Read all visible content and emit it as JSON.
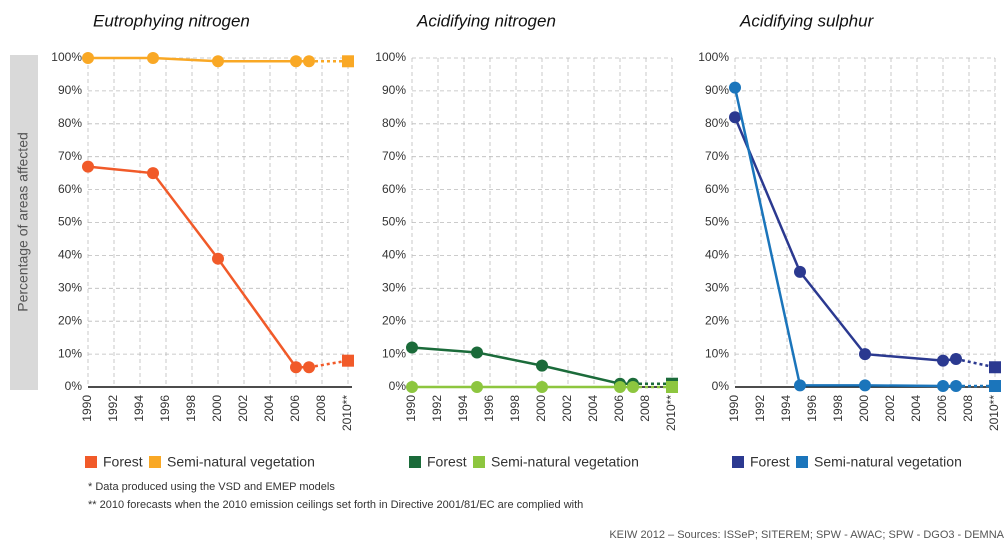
{
  "chart_data": [
    {
      "type": "line",
      "title": "Eutrophying nitrogen",
      "ylabel": "Percentage of areas affected",
      "x": [
        1990,
        1995,
        2000,
        2006,
        2007,
        2010
      ],
      "series": [
        {
          "name": "Forest",
          "color": "#f15a29",
          "values": [
            67,
            65,
            39,
            6,
            6,
            8
          ]
        },
        {
          "name": "Semi-natural vegetation",
          "color": "#f9a825",
          "values": [
            100,
            100,
            99,
            99,
            99,
            99
          ]
        }
      ],
      "xlim": [
        1990,
        2010
      ],
      "xticks": [
        1990,
        1992,
        1994,
        1996,
        1998,
        2000,
        2002,
        2004,
        2006,
        2008,
        {
          "value": 2010,
          "label": "2010**"
        }
      ],
      "ylim": [
        0,
        100
      ],
      "yticks": [
        {
          "value": 0,
          "label": "0%"
        },
        {
          "value": 10,
          "label": "10%"
        },
        {
          "value": 20,
          "label": "20%"
        },
        {
          "value": 30,
          "label": "30%"
        },
        {
          "value": 40,
          "label": "40%"
        },
        {
          "value": 50,
          "label": "50%"
        },
        {
          "value": 60,
          "label": "60%"
        },
        {
          "value": 70,
          "label": "70%"
        },
        {
          "value": 80,
          "label": "80%"
        },
        {
          "value": 90,
          "label": "90%"
        },
        {
          "value": 100,
          "label": "100%"
        }
      ],
      "grid": true,
      "last_segment_dotted": true
    },
    {
      "type": "line",
      "title": "Acidifying nitrogen",
      "x": [
        1990,
        1995,
        2000,
        2006,
        2007,
        2010
      ],
      "series": [
        {
          "name": "Forest",
          "color": "#1b6b3a",
          "values": [
            12,
            10.5,
            6.5,
            1,
            1,
            1
          ]
        },
        {
          "name": "Semi-natural vegetation",
          "color": "#8dc63f",
          "values": [
            0,
            0,
            0,
            0,
            0,
            0
          ]
        }
      ],
      "xlim": [
        1990,
        2010
      ],
      "xticks": [
        1990,
        1992,
        1994,
        1996,
        1998,
        2000,
        2002,
        2004,
        2006,
        2008,
        {
          "value": 2010,
          "label": "2010**"
        }
      ],
      "ylim": [
        0,
        100
      ],
      "yticks": [
        {
          "value": 0,
          "label": "0%"
        },
        {
          "value": 10,
          "label": "10%"
        },
        {
          "value": 20,
          "label": "20%"
        },
        {
          "value": 30,
          "label": "30%"
        },
        {
          "value": 40,
          "label": "40%"
        },
        {
          "value": 50,
          "label": "50%"
        },
        {
          "value": 60,
          "label": "60%"
        },
        {
          "value": 70,
          "label": "70%"
        },
        {
          "value": 80,
          "label": "80%"
        },
        {
          "value": 90,
          "label": "90%"
        },
        {
          "value": 100,
          "label": "100%"
        }
      ],
      "grid": true,
      "last_segment_dotted": true
    },
    {
      "type": "line",
      "title": "Acidifying sulphur",
      "x": [
        1990,
        1995,
        2000,
        2006,
        2007,
        2010
      ],
      "series": [
        {
          "name": "Forest",
          "color": "#2b3990",
          "values": [
            82,
            35,
            10,
            8,
            8.5,
            6
          ]
        },
        {
          "name": "Semi-natural vegetation",
          "color": "#1b75bb",
          "values": [
            91,
            0.5,
            0.5,
            0.3,
            0.3,
            0.3
          ]
        }
      ],
      "xlim": [
        1990,
        2010
      ],
      "xticks": [
        1990,
        1992,
        1994,
        1996,
        1998,
        2000,
        2002,
        2004,
        2006,
        2008,
        {
          "value": 2010,
          "label": "2010**"
        }
      ],
      "ylim": [
        0,
        100
      ],
      "yticks": [
        {
          "value": 0,
          "label": "0%"
        },
        {
          "value": 10,
          "label": "10%"
        },
        {
          "value": 20,
          "label": "20%"
        },
        {
          "value": 30,
          "label": "30%"
        },
        {
          "value": 40,
          "label": "40%"
        },
        {
          "value": 50,
          "label": "50%"
        },
        {
          "value": 60,
          "label": "60%"
        },
        {
          "value": 70,
          "label": "70%"
        },
        {
          "value": 80,
          "label": "80%"
        },
        {
          "value": 90,
          "label": "90%"
        },
        {
          "value": 100,
          "label": "100%"
        }
      ],
      "grid": true,
      "last_segment_dotted": true
    }
  ],
  "notes": [
    "* Data produced using the VSD and EMEP models",
    "** 2010 forecasts when the 2010 emission ceilings set forth in Directive 2001/81/EC are complied with"
  ],
  "source": "KEIW 2012 – Sources: ISSeP; SITEREM; SPW - AWAC; SPW - DGO3 - DEMNA"
}
